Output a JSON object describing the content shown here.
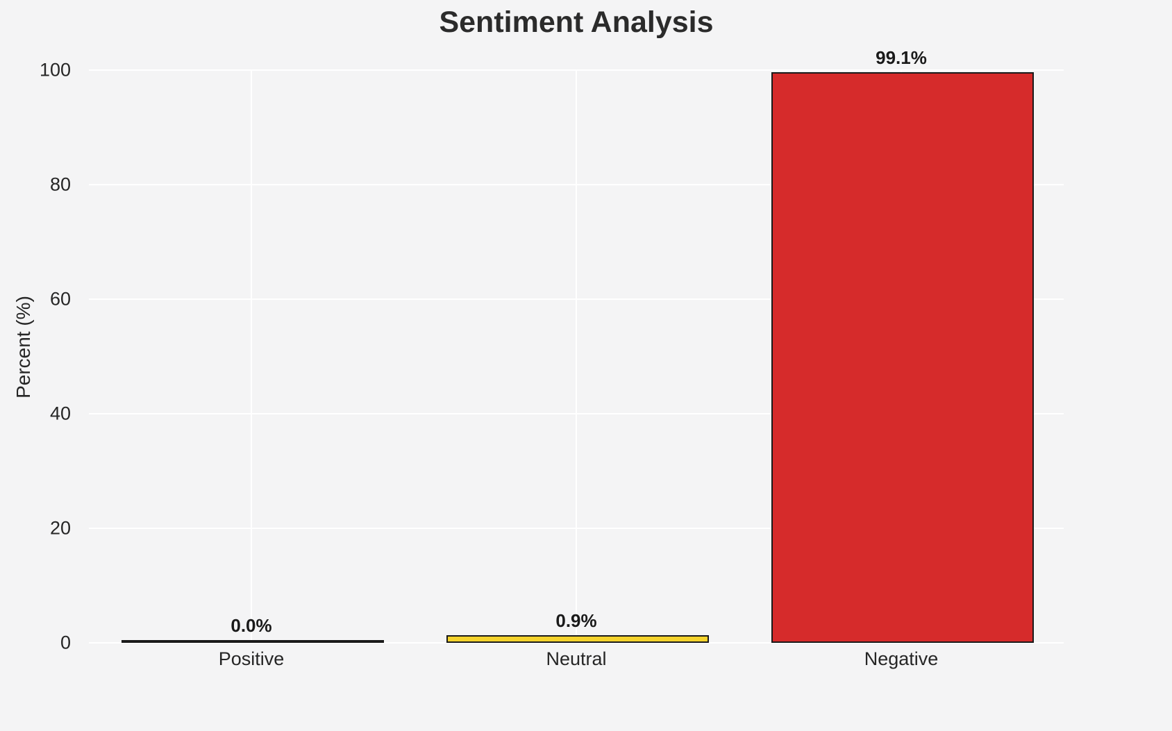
{
  "chart_data": {
    "type": "bar",
    "title": "Sentiment Analysis",
    "xlabel": "",
    "ylabel": "Percent (%)",
    "categories": [
      "Positive",
      "Neutral",
      "Negative"
    ],
    "values": [
      0.0,
      0.9,
      99.1
    ],
    "value_labels": [
      "0.0%",
      "0.9%",
      "99.1%"
    ],
    "ylim": [
      0,
      100
    ],
    "yticks": [
      0,
      20,
      40,
      60,
      80,
      100
    ],
    "grid": true,
    "legend": false,
    "bar_width_fraction": 0.8,
    "colors": {
      "bars": [
        "#2ca02c",
        "#f5d32c",
        "#d62b2b"
      ],
      "bar_edge": "#1a1a1a",
      "background": "#f4f4f5",
      "grid": "#ffffff",
      "text": "#262626"
    }
  }
}
